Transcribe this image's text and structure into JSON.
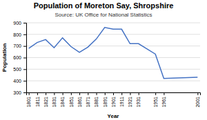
{
  "chart_data": {
    "type": "line",
    "title": "Population of Moreton Say, Shropshire",
    "subtitle": "Source: UK Office for National Statistics",
    "xlabel": "Year",
    "ylabel": "Population",
    "x": [
      1801,
      1811,
      1821,
      1831,
      1841,
      1851,
      1861,
      1871,
      1881,
      1891,
      1901,
      1911,
      1921,
      1931,
      1951,
      1961,
      2001
    ],
    "values": [
      680,
      730,
      755,
      685,
      770,
      695,
      645,
      690,
      760,
      860,
      845,
      845,
      720,
      720,
      630,
      420,
      430
    ],
    "color": "#4472C4",
    "xlim": [
      1798,
      2004
    ],
    "xticks": [
      1801,
      1811,
      1821,
      1831,
      1841,
      1851,
      1861,
      1871,
      1881,
      1891,
      1901,
      1911,
      1921,
      1931,
      1951,
      1961,
      2001
    ],
    "ylim": [
      300,
      900
    ],
    "yticks": [
      300,
      400,
      500,
      600,
      700,
      800,
      900
    ],
    "grid": true
  }
}
